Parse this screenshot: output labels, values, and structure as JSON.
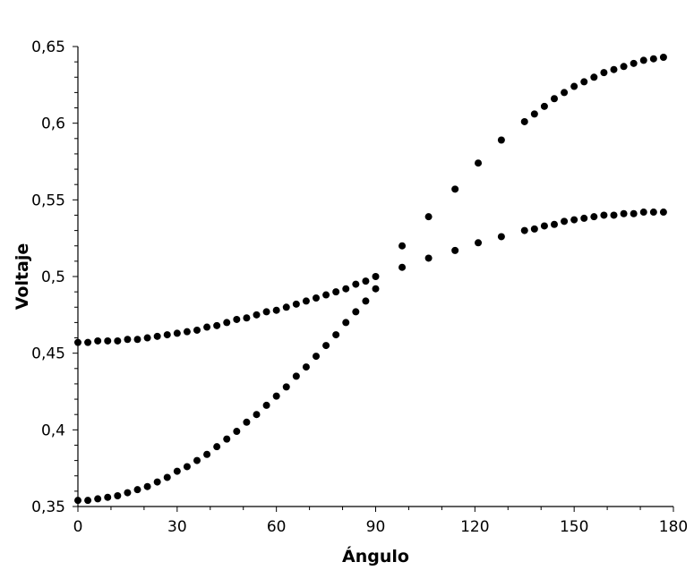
{
  "chart_data": {
    "type": "scatter",
    "title": "",
    "xlabel": "Ángulo",
    "ylabel": "Voltaje",
    "xlim": [
      0,
      180
    ],
    "ylim": [
      0.35,
      0.65
    ],
    "x_ticks": [
      0,
      30,
      60,
      90,
      120,
      150,
      180
    ],
    "x_tick_labels": [
      "0",
      "30",
      "60",
      "90",
      "120",
      "150",
      "180"
    ],
    "y_ticks": [
      0.35,
      0.4,
      0.45,
      0.5,
      0.55,
      0.6,
      0.65
    ],
    "y_tick_labels": [
      "0,35",
      "0,4",
      "0,45",
      "0,5",
      "0,55",
      "0,6",
      "0,65"
    ],
    "grid": false,
    "legend": "none",
    "marker_color": "#000000",
    "series": [
      {
        "x": [
          0,
          3,
          6,
          9,
          12,
          15,
          18,
          21,
          24,
          27,
          30,
          33,
          36,
          39,
          42,
          45,
          48,
          51,
          54,
          57,
          60,
          63,
          66,
          69,
          72,
          75,
          78,
          81,
          84,
          87,
          90,
          98,
          106,
          114,
          121,
          128,
          135,
          138,
          141,
          144,
          147,
          150,
          153,
          156,
          159,
          162,
          165,
          168,
          171,
          174,
          177
        ],
        "y": [
          0.457,
          0.457,
          0.458,
          0.458,
          0.458,
          0.459,
          0.459,
          0.46,
          0.461,
          0.462,
          0.463,
          0.464,
          0.465,
          0.467,
          0.468,
          0.47,
          0.472,
          0.473,
          0.475,
          0.477,
          0.478,
          0.48,
          0.482,
          0.484,
          0.486,
          0.488,
          0.49,
          0.492,
          0.495,
          0.497,
          0.5,
          0.506,
          0.512,
          0.517,
          0.522,
          0.526,
          0.53,
          0.531,
          0.533,
          0.534,
          0.536,
          0.537,
          0.538,
          0.539,
          0.54,
          0.54,
          0.541,
          0.541,
          0.542,
          0.542,
          0.542
        ]
      },
      {
        "x": [
          0,
          3,
          6,
          9,
          12,
          15,
          18,
          21,
          24,
          27,
          30,
          33,
          36,
          39,
          42,
          45,
          48,
          51,
          54,
          57,
          60,
          63,
          66,
          69,
          72,
          75,
          78,
          81,
          84,
          87,
          90,
          98,
          106,
          114,
          121,
          128,
          135,
          138,
          141,
          144,
          147,
          150,
          153,
          156,
          159,
          162,
          165,
          168,
          171,
          174,
          177
        ],
        "y": [
          0.354,
          0.354,
          0.355,
          0.356,
          0.357,
          0.359,
          0.361,
          0.363,
          0.366,
          0.369,
          0.373,
          0.376,
          0.38,
          0.384,
          0.389,
          0.394,
          0.399,
          0.405,
          0.41,
          0.416,
          0.422,
          0.428,
          0.435,
          0.441,
          0.448,
          0.455,
          0.462,
          0.47,
          0.477,
          0.484,
          0.492,
          0.52,
          0.539,
          0.557,
          0.574,
          0.589,
          0.601,
          0.606,
          0.611,
          0.616,
          0.62,
          0.624,
          0.627,
          0.63,
          0.633,
          0.635,
          0.637,
          0.639,
          0.641,
          0.642,
          0.643
        ]
      }
    ]
  }
}
